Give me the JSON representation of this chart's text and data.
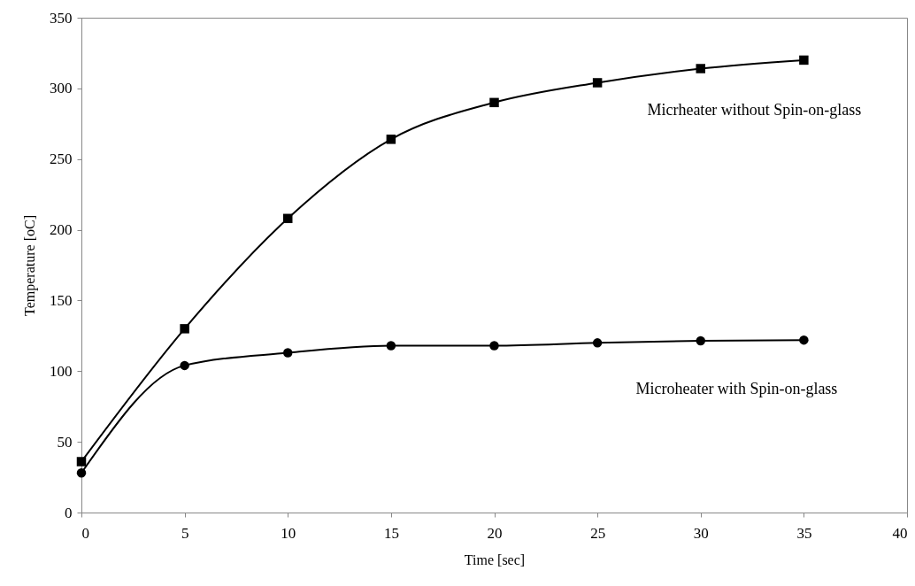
{
  "chart_data": {
    "type": "line",
    "xlabel": "Time [sec]",
    "ylabel": "Temperature [oC]",
    "x": [
      0,
      5,
      10,
      15,
      20,
      25,
      30,
      35
    ],
    "series": [
      {
        "name": "Micrheater without Spin-on-glass",
        "color": "#000000",
        "marker": "square",
        "values": [
          36,
          130,
          208,
          264,
          290,
          304,
          314,
          320
        ]
      },
      {
        "name": "Microheater with Spin-on-glass",
        "color": "#000000",
        "marker": "circle",
        "values": [
          28,
          104,
          113,
          118,
          118,
          120,
          121.5,
          122
        ]
      }
    ],
    "xlim": [
      0,
      40
    ],
    "xticks": [
      0,
      5,
      10,
      15,
      20,
      25,
      30,
      35,
      40
    ],
    "ylim": [
      0,
      350
    ],
    "yticks": [
      0,
      50,
      100,
      150,
      200,
      250,
      300,
      350
    ],
    "grid": false,
    "legend": false
  }
}
